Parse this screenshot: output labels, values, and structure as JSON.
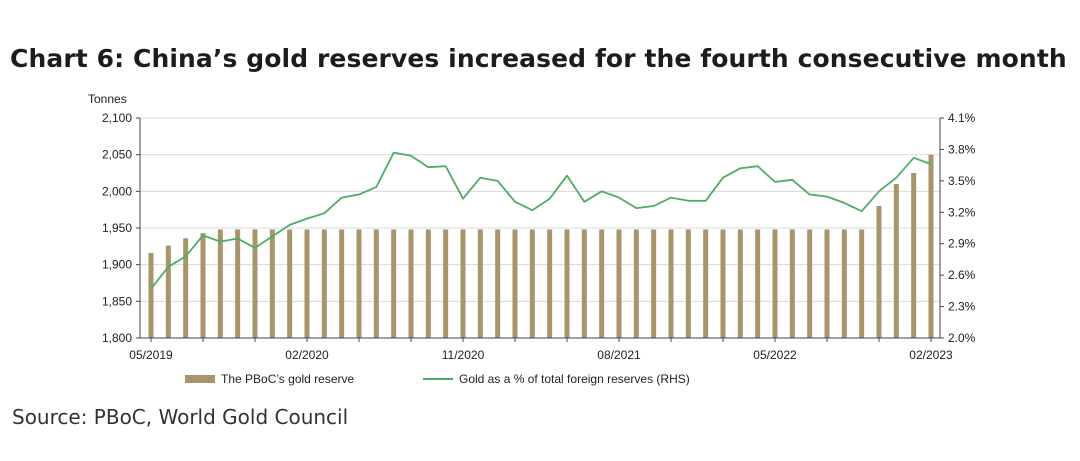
{
  "title": "Chart 6: China’s gold reserves increased for the fourth consecutive month",
  "source": "Source: PBoC, World Gold Council",
  "colors": {
    "bar": "#a9956a",
    "line": "#4cae66",
    "axis": "#444444",
    "grid": "#d9d9d9"
  },
  "chart_data": {
    "type": "bar+line",
    "left_unit_label": "Tonnes",
    "y_left": {
      "min": 1800,
      "max": 2100,
      "ticks": [
        "1,800",
        "1,850",
        "1,900",
        "1,950",
        "2,000",
        "2,050",
        "2,100"
      ],
      "tick_values": [
        1800,
        1850,
        1900,
        1950,
        2000,
        2050,
        2100
      ]
    },
    "y_right": {
      "min": 2.0,
      "max": 4.1,
      "ticks": [
        "2.0%",
        "2.3%",
        "2.6%",
        "2.9%",
        "3.2%",
        "3.5%",
        "3.8%",
        "4.1%"
      ],
      "tick_values": [
        2.0,
        2.3,
        2.6,
        2.9,
        3.2,
        3.5,
        3.8,
        4.1
      ]
    },
    "x_tick_labels": [
      {
        "label": "05/2019",
        "index": 0
      },
      {
        "label": "02/2020",
        "index": 9
      },
      {
        "label": "11/2020",
        "index": 18
      },
      {
        "label": "08/2021",
        "index": 27
      },
      {
        "label": "05/2022",
        "index": 36
      },
      {
        "label": "02/2023",
        "index": 45
      }
    ],
    "legend": {
      "bar": "The PBoC’s gold reserve",
      "line": "Gold as a % of total foreign reserves (RHS)"
    },
    "series": [
      {
        "name": "The PBoC’s gold reserve",
        "type": "bar",
        "axis": "left",
        "values": [
          1916,
          1926,
          1936,
          1943,
          1948,
          1948,
          1948,
          1948,
          1948,
          1948,
          1948,
          1948,
          1948,
          1948,
          1948,
          1948,
          1948,
          1948,
          1948,
          1948,
          1948,
          1948,
          1948,
          1948,
          1948,
          1948,
          1948,
          1948,
          1948,
          1948,
          1948,
          1948,
          1948,
          1948,
          1948,
          1948,
          1948,
          1948,
          1948,
          1948,
          1948,
          1948,
          1980,
          2010,
          2025,
          2050
        ]
      },
      {
        "name": "Gold as a % of total foreign reserves (RHS)",
        "type": "line",
        "axis": "right",
        "values": [
          2.47,
          2.68,
          2.78,
          2.98,
          2.92,
          2.95,
          2.86,
          2.97,
          3.08,
          3.14,
          3.19,
          3.34,
          3.37,
          3.44,
          3.77,
          3.74,
          3.63,
          3.64,
          3.33,
          3.53,
          3.5,
          3.3,
          3.22,
          3.33,
          3.55,
          3.3,
          3.4,
          3.34,
          3.24,
          3.26,
          3.34,
          3.31,
          3.31,
          3.53,
          3.62,
          3.64,
          3.49,
          3.51,
          3.37,
          3.35,
          3.29,
          3.21,
          3.4,
          3.53,
          3.72,
          3.66
        ]
      }
    ]
  }
}
